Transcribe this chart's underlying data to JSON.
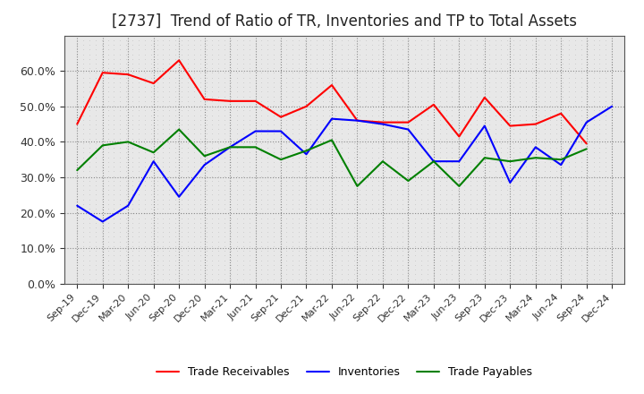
{
  "title": "[2737]  Trend of Ratio of TR, Inventories and TP to Total Assets",
  "labels": [
    "Sep-19",
    "Dec-19",
    "Mar-20",
    "Jun-20",
    "Sep-20",
    "Dec-20",
    "Mar-21",
    "Jun-21",
    "Sep-21",
    "Dec-21",
    "Mar-22",
    "Jun-22",
    "Sep-22",
    "Dec-22",
    "Mar-23",
    "Jun-23",
    "Sep-23",
    "Dec-23",
    "Mar-24",
    "Jun-24",
    "Sep-24",
    "Dec-24"
  ],
  "trade_receivables": [
    45.0,
    59.5,
    59.0,
    56.5,
    63.0,
    52.0,
    51.5,
    51.5,
    47.0,
    50.0,
    56.0,
    46.0,
    45.5,
    45.5,
    50.5,
    41.5,
    52.5,
    44.5,
    45.0,
    48.0,
    39.5,
    null
  ],
  "inventories": [
    22.0,
    17.5,
    22.0,
    34.5,
    24.5,
    33.5,
    38.5,
    43.0,
    43.0,
    36.5,
    46.5,
    46.0,
    45.0,
    43.5,
    34.5,
    34.5,
    44.5,
    28.5,
    38.5,
    33.5,
    45.5,
    50.0
  ],
  "trade_payables": [
    32.0,
    39.0,
    40.0,
    37.0,
    43.5,
    36.0,
    38.5,
    38.5,
    35.0,
    37.5,
    40.5,
    27.5,
    34.5,
    29.0,
    34.5,
    27.5,
    35.5,
    34.5,
    35.5,
    35.0,
    38.0,
    null
  ],
  "ylim": [
    0,
    70
  ],
  "yticks": [
    0.0,
    10.0,
    20.0,
    30.0,
    40.0,
    50.0,
    60.0
  ],
  "line_colors": {
    "trade_receivables": "#FF0000",
    "inventories": "#0000FF",
    "trade_payables": "#008000"
  },
  "background_color": "#FFFFFF",
  "plot_bg_color": "#E8E8E8",
  "grid_color": "#888888",
  "title_fontsize": 12,
  "tick_fontsize": 8,
  "legend_labels": [
    "Trade Receivables",
    "Inventories",
    "Trade Payables"
  ],
  "line_width": 1.5
}
